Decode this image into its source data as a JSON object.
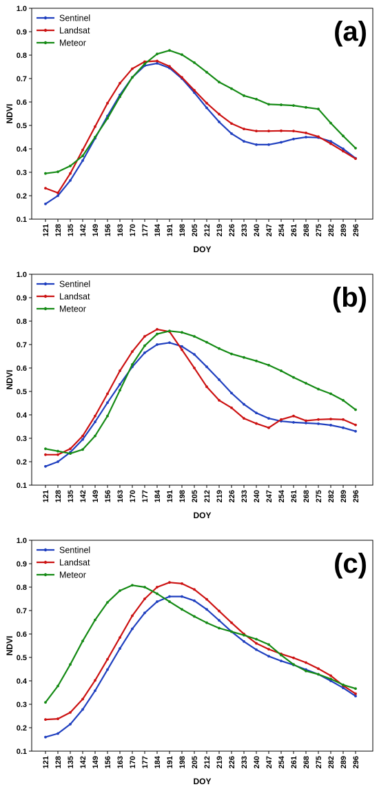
{
  "colors": {
    "sentinel": "#1f3fbf",
    "landsat": "#cc1111",
    "meteor": "#148a14",
    "axis": "#000000"
  },
  "chart_data": [
    {
      "type": "line",
      "panel_label": "(a)",
      "xlabel": "DOY",
      "ylabel": "NDVI",
      "ylim": [
        0.1,
        1.0
      ],
      "yticks": [
        "0.1",
        "0.2",
        "0.3",
        "0.4",
        "0.5",
        "0.6",
        "0.7",
        "0.8",
        "0.9",
        "1.0"
      ],
      "x": [
        "121",
        "128",
        "135",
        "142",
        "149",
        "156",
        "163",
        "170",
        "177",
        "184",
        "191",
        "198",
        "205",
        "212",
        "219",
        "226",
        "233",
        "240",
        "247",
        "254",
        "261",
        "268",
        "275",
        "282",
        "289",
        "296"
      ],
      "legend": "top-left",
      "series": [
        {
          "name": "Sentinel",
          "key": "sentinel",
          "values": [
            0.165,
            0.2,
            0.265,
            0.35,
            0.445,
            0.54,
            0.63,
            0.705,
            0.755,
            0.765,
            0.745,
            0.7,
            0.64,
            0.575,
            0.515,
            0.465,
            0.432,
            0.418,
            0.418,
            0.428,
            0.442,
            0.45,
            0.448,
            0.432,
            0.4,
            0.36
          ]
        },
        {
          "name": "Landsat",
          "key": "landsat",
          "values": [
            0.232,
            0.212,
            0.295,
            0.395,
            0.495,
            0.595,
            0.68,
            0.742,
            0.772,
            0.775,
            0.752,
            0.705,
            0.65,
            0.595,
            0.548,
            0.508,
            0.485,
            0.476,
            0.476,
            0.477,
            0.476,
            0.468,
            0.452,
            0.422,
            0.39,
            0.358
          ]
        },
        {
          "name": "Meteor",
          "key": "meteor",
          "values": [
            0.295,
            0.302,
            0.327,
            0.37,
            0.45,
            0.53,
            0.622,
            0.705,
            0.763,
            0.805,
            0.82,
            0.802,
            0.768,
            0.727,
            0.685,
            0.657,
            0.627,
            0.612,
            0.59,
            0.588,
            0.585,
            0.577,
            0.57,
            0.51,
            0.455,
            0.403
          ]
        }
      ]
    },
    {
      "type": "line",
      "panel_label": "(b)",
      "xlabel": "DOY",
      "ylabel": "NDVI",
      "ylim": [
        0.1,
        1.0
      ],
      "yticks": [
        "0.1",
        "0.2",
        "0.3",
        "0.4",
        "0.5",
        "0.6",
        "0.7",
        "0.8",
        "0.9",
        "1.0"
      ],
      "x": [
        "121",
        "128",
        "135",
        "142",
        "149",
        "156",
        "163",
        "170",
        "177",
        "184",
        "191",
        "198",
        "205",
        "212",
        "219",
        "226",
        "233",
        "240",
        "247",
        "254",
        "261",
        "268",
        "275",
        "282",
        "289",
        "296"
      ],
      "legend": "top-left",
      "series": [
        {
          "name": "Sentinel",
          "key": "sentinel",
          "values": [
            0.18,
            0.2,
            0.24,
            0.295,
            0.37,
            0.452,
            0.53,
            0.605,
            0.665,
            0.7,
            0.708,
            0.692,
            0.658,
            0.605,
            0.55,
            0.493,
            0.445,
            0.408,
            0.385,
            0.373,
            0.368,
            0.365,
            0.362,
            0.356,
            0.345,
            0.33
          ]
        },
        {
          "name": "Landsat",
          "key": "landsat",
          "values": [
            0.23,
            0.23,
            0.255,
            0.31,
            0.395,
            0.49,
            0.588,
            0.67,
            0.735,
            0.765,
            0.755,
            0.678,
            0.6,
            0.52,
            0.462,
            0.43,
            0.385,
            0.363,
            0.345,
            0.38,
            0.395,
            0.375,
            0.38,
            0.382,
            0.38,
            0.357
          ]
        },
        {
          "name": "Meteor",
          "key": "meteor",
          "values": [
            0.255,
            0.245,
            0.235,
            0.252,
            0.31,
            0.395,
            0.505,
            0.615,
            0.695,
            0.745,
            0.758,
            0.752,
            0.735,
            0.71,
            0.683,
            0.66,
            0.645,
            0.63,
            0.612,
            0.588,
            0.56,
            0.535,
            0.51,
            0.49,
            0.462,
            0.422
          ]
        }
      ]
    },
    {
      "type": "line",
      "panel_label": "(c)",
      "xlabel": "DOY",
      "ylabel": "NDVI",
      "ylim": [
        0.1,
        1.0
      ],
      "yticks": [
        "0.1",
        "0.2",
        "0.3",
        "0.4",
        "0.5",
        "0.6",
        "0.7",
        "0.8",
        "0.9",
        "1.0"
      ],
      "x": [
        "121",
        "128",
        "135",
        "142",
        "149",
        "156",
        "163",
        "170",
        "177",
        "184",
        "191",
        "198",
        "205",
        "212",
        "219",
        "226",
        "233",
        "240",
        "247",
        "254",
        "261",
        "268",
        "275",
        "282",
        "289",
        "296"
      ],
      "legend": "top-left",
      "series": [
        {
          "name": "Sentinel",
          "key": "sentinel",
          "values": [
            0.16,
            0.175,
            0.215,
            0.278,
            0.358,
            0.448,
            0.538,
            0.622,
            0.69,
            0.738,
            0.76,
            0.76,
            0.742,
            0.705,
            0.658,
            0.61,
            0.568,
            0.533,
            0.505,
            0.485,
            0.468,
            0.448,
            0.428,
            0.4,
            0.37,
            0.335
          ]
        },
        {
          "name": "Landsat",
          "key": "landsat",
          "values": [
            0.235,
            0.238,
            0.265,
            0.322,
            0.402,
            0.492,
            0.585,
            0.678,
            0.75,
            0.8,
            0.82,
            0.815,
            0.79,
            0.748,
            0.698,
            0.648,
            0.6,
            0.56,
            0.535,
            0.515,
            0.498,
            0.478,
            0.452,
            0.422,
            0.38,
            0.345
          ]
        },
        {
          "name": "Meteor",
          "key": "meteor",
          "values": [
            0.308,
            0.378,
            0.47,
            0.57,
            0.66,
            0.735,
            0.785,
            0.808,
            0.8,
            0.772,
            0.738,
            0.705,
            0.675,
            0.648,
            0.625,
            0.61,
            0.595,
            0.578,
            0.555,
            0.51,
            0.47,
            0.442,
            0.428,
            0.408,
            0.383,
            0.367
          ]
        }
      ]
    }
  ]
}
